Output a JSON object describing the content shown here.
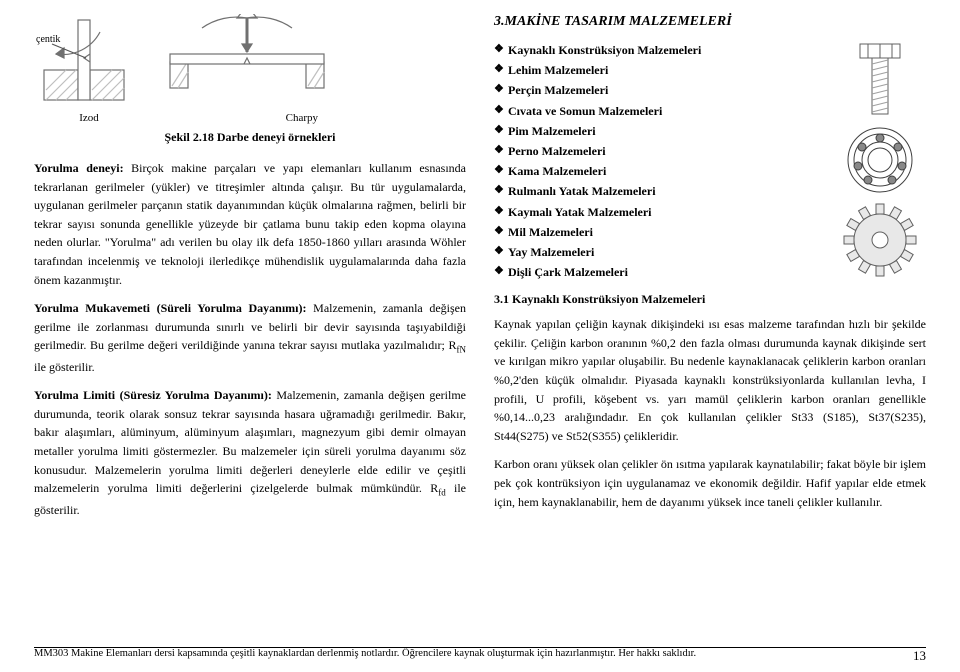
{
  "left": {
    "fig_labels": {
      "izod": "Izod",
      "charpy": "Charpy",
      "centik": "çentik"
    },
    "fig_caption": "Şekil 2.18 Darbe deneyi örnekleri",
    "para1_lead": "Yorulma deneyi:",
    "para1_rest": " Birçok makine parçaları ve yapı elemanları kullanım esnasında tekrarlanan gerilmeler (yükler) ve titreşimler altında çalışır. Bu tür uygulamalarda, uygulanan gerilmeler parçanın statik dayanımından küçük olmalarına rağmen, belirli bir tekrar sayısı sonunda genellikle yüzeyde bir çatlama bunu takip eden kopma olayına neden olurlar. \"Yorulma\" adı verilen bu olay ilk defa 1850-1860 yılları arasında Wöhler tarafından incelenmiş ve teknoloji ilerledikçe mühendislik uygulamalarında daha fazla önem kazanmıştır.",
    "para2_lead": "Yorulma Mukavemeti (Süreli Yorulma Dayanımı):",
    "para2_rest": " Malzemenin, zamanla değişen gerilme ile zorlanması durumunda sınırlı ve belirli bir devir sayısında taşıyabildiği gerilmedir. Bu gerilme değeri verildiğinde yanına tekrar sayısı mutlaka yazılmalıdır; R",
    "para2_sub": "fN",
    "para2_tail": " ile gösterilir.",
    "para3_lead": "Yorulma Limiti (Süresiz Yorulma Dayanımı):",
    "para3_rest": " Malzemenin, zamanla değişen gerilme durumunda, teorik olarak sonsuz tekrar sayısında hasara uğramadığı gerilmedir. Bakır, bakır alaşımları, alüminyum, alüminyum alaşımları, magnezyum gibi demir olmayan metaller yorulma limiti göstermezler. Bu malzemeler için süreli yorulma dayanımı söz konusudur. Malzemelerin yorulma limiti değerleri deneylerle elde edilir ve çeşitli malzemelerin yorulma limiti değerlerini çizelgelerde bulmak mümkündür. R",
    "para3_sub": "fd",
    "para3_tail": " ile gösterilir."
  },
  "right": {
    "section_title": "3.MAKİNE TASARIM MALZEMELERİ",
    "bullets": [
      "Kaynaklı Konstrüksiyon Malzemeleri",
      "Lehim Malzemeleri",
      "Perçin Malzemeleri",
      "Cıvata ve Somun Malzemeleri",
      "Pim Malzemeleri",
      "Perno Malzemeleri",
      "Kama Malzemeleri",
      "Rulmanlı Yatak Malzemeleri",
      "Kaymalı Yatak Malzemeleri",
      "Mil Malzemeleri",
      "Yay Malzemeleri",
      "Dişli Çark Malzemeleri"
    ],
    "subheading": "3.1 Kaynaklı Konstrüksiyon Malzemeleri",
    "para1": "Kaynak yapılan çeliğin kaynak dikişindeki ısı esas malzeme tarafından hızlı bir şekilde çekilir. Çeliğin karbon oranının %0,2 den fazla olması durumunda kaynak dikişinde sert ve kırılgan mikro yapılar oluşabilir. Bu nedenle kaynaklanacak çeliklerin karbon oranları %0,2'den küçük olmalıdır. Piyasada kaynaklı konstrüksiyonlarda kullanılan levha, I profili, U profili, köşebent vs. yarı mamül çeliklerin karbon oranları genellikle %0,14...0,23 aralığındadır. En çok kullanılan çelikler St33 (S185), St37(S235), St44(S275) ve St52(S355) çelikleridir.",
    "para2": "Karbon oranı yüksek olan çelikler ön ısıtma yapılarak kaynatılabilir; fakat böyle bir işlem pek çok kontrüksiyon için uygulanamaz ve ekonomik değildir. Hafif yapılar elde etmek için, hem kaynaklanabilir, hem de dayanımı yüksek ince taneli çelikler kullanılır."
  },
  "footer": {
    "text": "MM303 Makine Elemanları dersi kapsamında çeşitli kaynaklardan derlenmiş notlardır. Öğrencilere kaynak oluşturmak için hazırlanmıştır. Her hakkı saklıdır.",
    "page": "13"
  },
  "style": {
    "stroke": "#808080",
    "stroke_dark": "#555555",
    "hatch": "#bfbfbf"
  }
}
